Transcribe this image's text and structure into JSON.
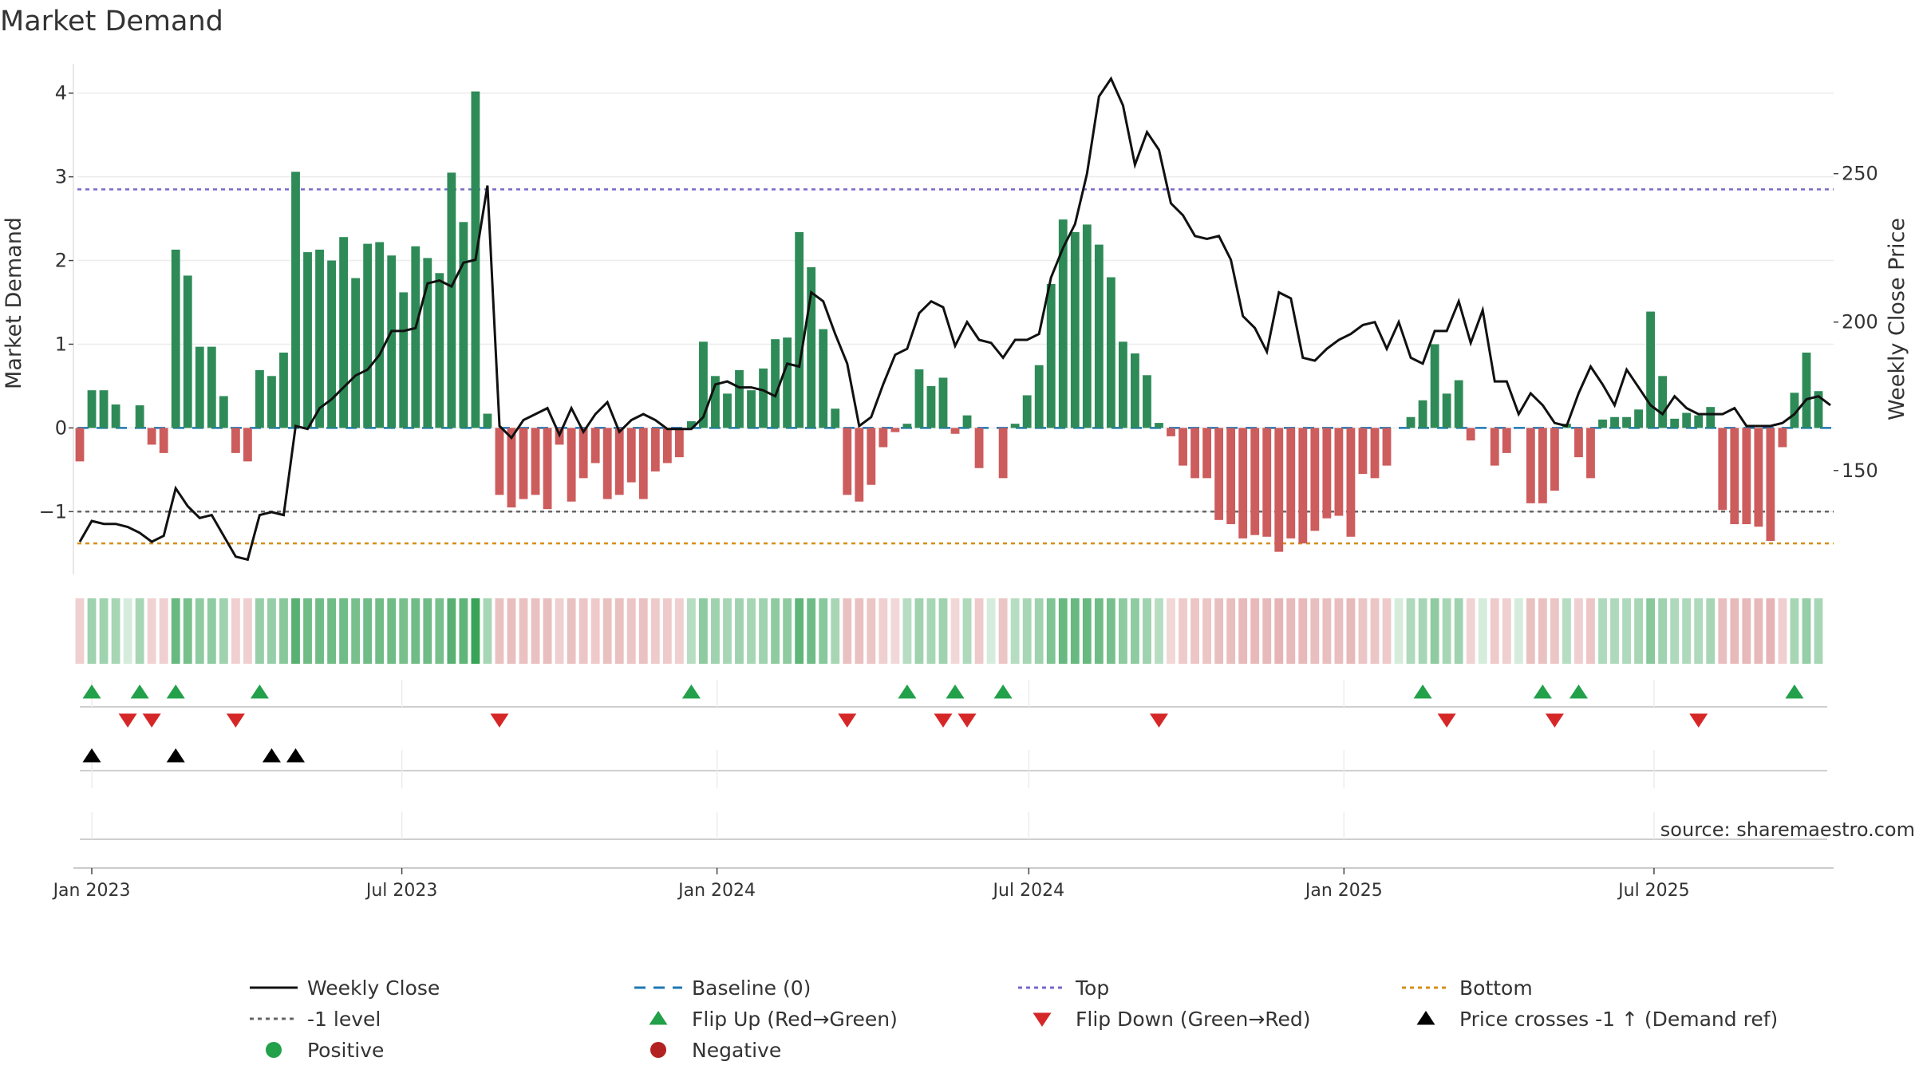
{
  "chart_data": {
    "type": "bar",
    "title": "Market Demand",
    "ylabel_left": "Market Demand",
    "ylabel_right": "Weekly Close Price",
    "ylim_left": [
      -1.75,
      4.35
    ],
    "ylim_right": [
      115,
      287
    ],
    "yticks_left": [
      {
        "v": 4,
        "label": "4"
      },
      {
        "v": 3,
        "label": "3"
      },
      {
        "v": 2,
        "label": "2"
      },
      {
        "v": 1,
        "label": "1"
      },
      {
        "v": 0,
        "label": "0"
      },
      {
        "v": -1,
        "label": "−1"
      }
    ],
    "yticks_right": [
      {
        "v": 250,
        "label": "250"
      },
      {
        "v": 200,
        "label": "200"
      },
      {
        "v": 150,
        "label": "150"
      }
    ],
    "x_start": "2022-12-25",
    "x_step_days": 7,
    "x_ticks": [
      {
        "date": "2023-01-01",
        "label": "Jan 2023"
      },
      {
        "date": "2023-07-01",
        "label": "Jul 2023"
      },
      {
        "date": "2024-01-01",
        "label": "Jan 2024"
      },
      {
        "date": "2024-07-01",
        "label": "Jul 2024"
      },
      {
        "date": "2025-01-01",
        "label": "Jan 2025"
      },
      {
        "date": "2025-07-01",
        "label": "Jul 2025"
      }
    ],
    "reference_lines": {
      "baseline": 0,
      "top": 2.85,
      "minus_one": -1,
      "bottom": -1.38
    },
    "series": [
      {
        "name": "Market Demand",
        "values": [
          -0.4,
          0.45,
          0.45,
          0.28,
          0.0,
          0.27,
          -0.2,
          -0.3,
          2.13,
          1.82,
          0.97,
          0.97,
          0.38,
          -0.3,
          -0.4,
          0.69,
          0.62,
          0.9,
          3.06,
          2.1,
          2.13,
          2.0,
          2.28,
          1.79,
          2.2,
          2.22,
          2.06,
          1.62,
          2.17,
          2.03,
          1.85,
          3.05,
          2.46,
          4.02,
          0.17,
          -0.8,
          -0.95,
          -0.85,
          -0.8,
          -0.97,
          -0.2,
          -0.88,
          -0.6,
          -0.42,
          -0.85,
          -0.8,
          -0.65,
          -0.85,
          -0.52,
          -0.42,
          -0.35,
          0.08,
          1.03,
          0.62,
          0.41,
          0.69,
          0.45,
          0.71,
          1.06,
          1.08,
          2.34,
          1.92,
          1.18,
          0.23,
          -0.8,
          -0.88,
          -0.68,
          -0.23,
          -0.05,
          0.05,
          0.7,
          0.5,
          0.6,
          -0.07,
          0.15,
          -0.48,
          0.0,
          -0.6,
          0.05,
          0.39,
          0.75,
          1.72,
          2.49,
          2.34,
          2.43,
          2.19,
          1.8,
          1.03,
          0.89,
          0.63,
          0.06,
          -0.1,
          -0.45,
          -0.6,
          -0.6,
          -1.1,
          -1.15,
          -1.32,
          -1.28,
          -1.3,
          -1.48,
          -1.32,
          -1.38,
          -1.23,
          -1.08,
          -1.05,
          -1.3,
          -0.55,
          -0.6,
          -0.45,
          0.0,
          0.13,
          0.33,
          1.0,
          0.41,
          0.57,
          -0.15,
          0.0,
          -0.45,
          -0.3,
          0.0,
          -0.9,
          -0.9,
          -0.75,
          0.05,
          -0.35,
          -0.6,
          0.1,
          0.13,
          0.13,
          0.22,
          1.39,
          0.62,
          0.11,
          0.18,
          0.15,
          0.25,
          -0.98,
          -1.15,
          -1.15,
          -1.18,
          -1.35,
          -0.23,
          0.42,
          0.9,
          0.44
        ]
      },
      {
        "name": "Weekly Close",
        "values": [
          126,
          133,
          132,
          132,
          131,
          129,
          126,
          128,
          144,
          138,
          134,
          135,
          128,
          121,
          120,
          135,
          136,
          135,
          165,
          164,
          171,
          174,
          178,
          182,
          184,
          189,
          197,
          197,
          198,
          213,
          214,
          212,
          220,
          221,
          246,
          165,
          161,
          167,
          169,
          171,
          162,
          171,
          163,
          169,
          173,
          163,
          167,
          169,
          167,
          164,
          164,
          164,
          168,
          179,
          180,
          178,
          178,
          177,
          175,
          186,
          185,
          210,
          207,
          196,
          186,
          165,
          168,
          179,
          189,
          191,
          203,
          207,
          205,
          192,
          200,
          194,
          193,
          188,
          194,
          194,
          196,
          215,
          225,
          233,
          250,
          276,
          282,
          273,
          253,
          264,
          258,
          240,
          236,
          229,
          228,
          229,
          221,
          202,
          198,
          190,
          210,
          208,
          188,
          187,
          191,
          194,
          196,
          199,
          200,
          191,
          200,
          188,
          186,
          197,
          197,
          207,
          193,
          204,
          180,
          180,
          169,
          176,
          172,
          166,
          165,
          176,
          185,
          179,
          172,
          184,
          178,
          172,
          169,
          175,
          171,
          169,
          169,
          169,
          171,
          165,
          165,
          165,
          166,
          169,
          174,
          175,
          172
        ]
      }
    ],
    "strip_intensity": [
      -0.3,
      0.35,
      0.35,
      0.3,
      0.0,
      0.3,
      -0.25,
      -0.3,
      0.7,
      0.6,
      0.45,
      0.45,
      0.35,
      -0.3,
      -0.3,
      0.4,
      0.4,
      0.5,
      0.8,
      0.65,
      0.65,
      0.65,
      0.65,
      0.6,
      0.65,
      0.65,
      0.65,
      0.6,
      0.65,
      0.65,
      0.6,
      0.8,
      0.75,
      1.0,
      0.3,
      -0.45,
      -0.5,
      -0.45,
      -0.45,
      -0.5,
      -0.3,
      -0.45,
      -0.4,
      -0.35,
      -0.45,
      -0.45,
      -0.4,
      -0.45,
      -0.35,
      -0.35,
      -0.3,
      0.2,
      0.45,
      0.35,
      0.3,
      0.35,
      0.3,
      0.35,
      0.45,
      0.45,
      0.75,
      0.65,
      0.5,
      0.3,
      -0.45,
      -0.45,
      -0.4,
      -0.3,
      -0.2,
      0.2,
      0.35,
      0.3,
      0.35,
      -0.2,
      0.25,
      -0.35,
      0.0,
      -0.4,
      0.2,
      0.3,
      0.35,
      0.55,
      0.7,
      0.7,
      0.7,
      0.65,
      0.6,
      0.45,
      0.45,
      0.35,
      0.2,
      -0.2,
      -0.35,
      -0.4,
      -0.4,
      -0.5,
      -0.5,
      -0.55,
      -0.55,
      -0.55,
      -0.6,
      -0.55,
      -0.55,
      -0.5,
      -0.5,
      -0.5,
      -0.55,
      -0.4,
      -0.4,
      -0.35,
      0.0,
      0.25,
      0.3,
      0.45,
      0.3,
      0.35,
      -0.25,
      0.0,
      -0.35,
      -0.3,
      0.0,
      -0.45,
      -0.45,
      -0.4,
      0.2,
      -0.3,
      -0.4,
      0.25,
      0.25,
      0.25,
      0.3,
      0.5,
      0.35,
      0.25,
      0.25,
      0.25,
      0.3,
      -0.5,
      -0.55,
      -0.55,
      -0.55,
      -0.6,
      -0.3,
      0.3,
      0.4,
      0.3
    ],
    "flip_up": [
      1,
      5,
      8,
      15,
      51,
      69,
      73,
      77,
      112,
      122,
      125,
      143
    ],
    "flip_down": [
      4,
      6,
      13,
      35,
      64,
      72,
      74,
      90,
      114,
      123,
      135
    ],
    "price_cross": [
      1,
      8,
      16,
      18
    ],
    "source": "source: sharemaestro.com",
    "legend": [
      {
        "key": "line-black",
        "label": "Weekly Close"
      },
      {
        "key": "dash-blue",
        "label": "Baseline (0)"
      },
      {
        "key": "dot-purple",
        "label": "Top"
      },
      {
        "key": "dot-orange",
        "label": "Bottom"
      },
      {
        "key": "dot-gray",
        "label": "-1 level"
      },
      {
        "key": "tri-up-green",
        "label": "Flip Up (Red→Green)"
      },
      {
        "key": "tri-down-red",
        "label": "Flip Down (Green→Red)"
      },
      {
        "key": "tri-up-black",
        "label": "Price crosses -1 ↑ (Demand ref)"
      },
      {
        "key": "circle-green",
        "label": "Positive"
      },
      {
        "key": "circle-red",
        "label": "Negative"
      }
    ],
    "colors": {
      "positive": "#2e8b57",
      "negative": "#cd5c5c",
      "price": "#111111",
      "baseline": "#1f77b4",
      "top": "#7b68c8",
      "bottom": "#d4901a",
      "minus_one": "#666666",
      "flip_up": "#22a04a",
      "flip_down": "#d62728",
      "cross": "#000000",
      "strip_pos": "#2e9e4f",
      "strip_neg": "#d98c8c",
      "legend_pos": "#22a04a",
      "legend_neg": "#b22222"
    }
  }
}
